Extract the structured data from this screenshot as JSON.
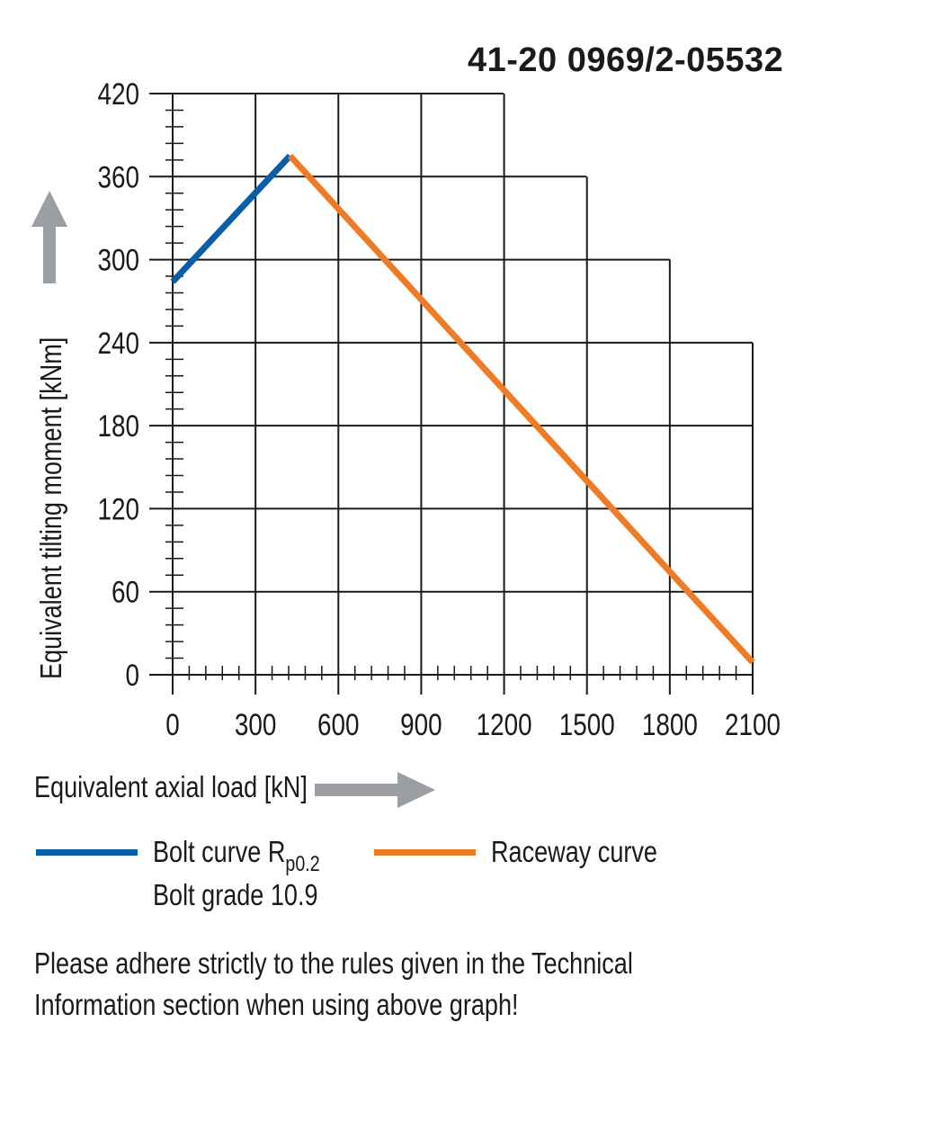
{
  "header": {
    "code": "41-20 0969/2-05532"
  },
  "chart_data": {
    "type": "line",
    "title": "41-20 0969/2-05532",
    "xlabel": "Equivalent axial load [kN]",
    "ylabel": "Equivalent tilting moment [kNm]",
    "xlim": [
      0,
      2100
    ],
    "ylim": [
      0,
      420
    ],
    "xticks": [
      0,
      300,
      600,
      900,
      1200,
      1500,
      1800,
      2100
    ],
    "yticks": [
      0,
      60,
      120,
      180,
      240,
      300,
      360,
      420
    ],
    "grid": true,
    "series": [
      {
        "name": "Bolt curve R p0.2",
        "color": "#0a5ea8",
        "x": [
          0,
          425
        ],
        "y": [
          284,
          375
        ]
      },
      {
        "name": "Raceway curve",
        "color": "#f07b25",
        "x": [
          425,
          2100
        ],
        "y": [
          375,
          9
        ]
      }
    ]
  },
  "legend": {
    "bolt_label": "Bolt curve  R",
    "bolt_sub": "p0.2",
    "bolt_grade": "Bolt grade 10.9",
    "raceway_label": "Raceway curve"
  },
  "note": {
    "line1": "Please adhere strictly to the rules given in the Technical",
    "line2": "Information section when using above graph!"
  },
  "colors": {
    "bolt": "#0a5ea8",
    "raceway": "#f07b25",
    "arrow": "#9b9ea2",
    "grid": "#1a1a1a"
  }
}
